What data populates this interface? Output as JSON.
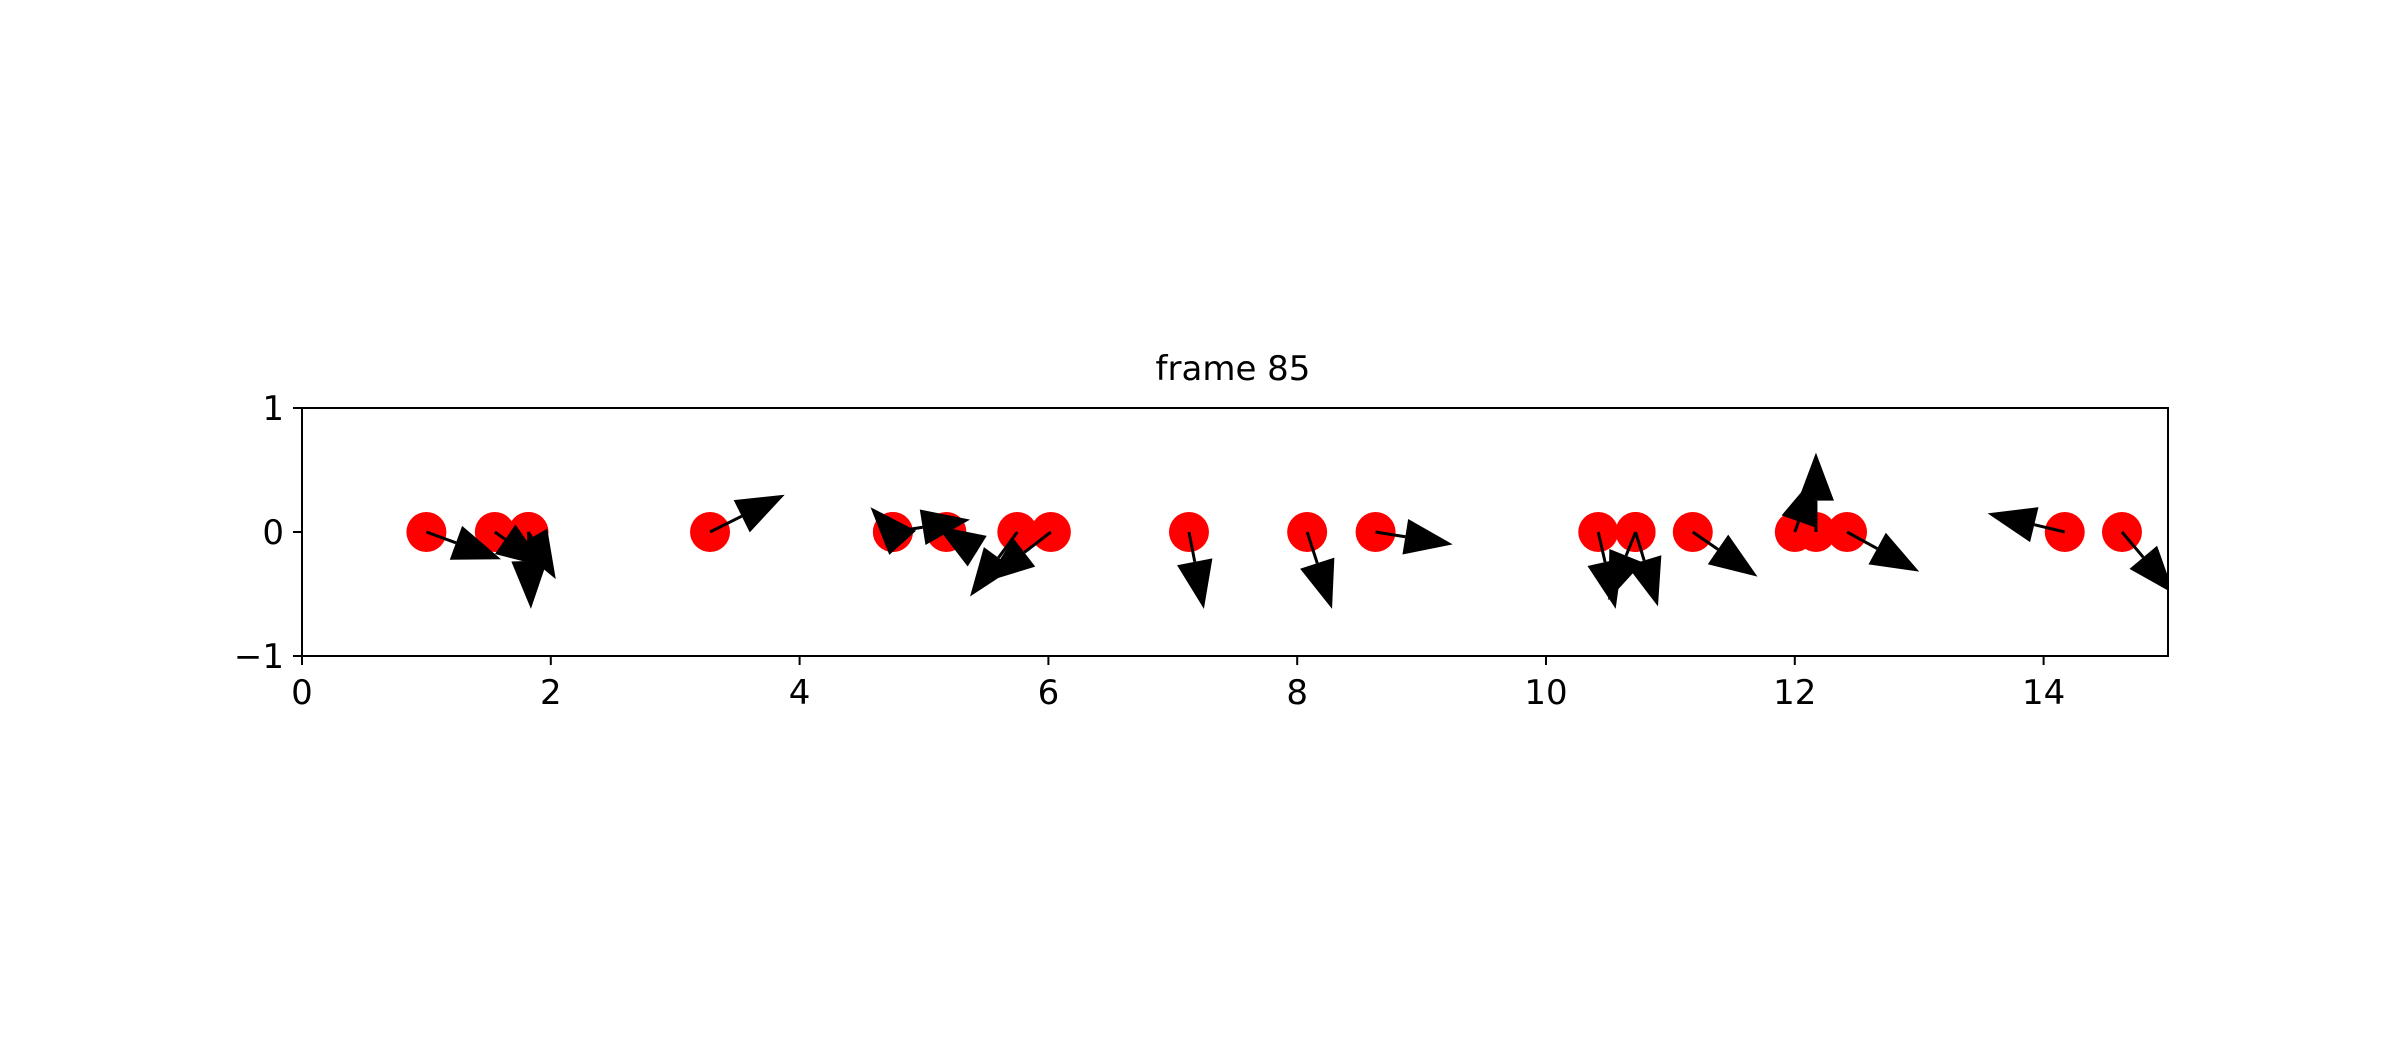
{
  "chart_data": {
    "type": "scatter",
    "title": "frame 85",
    "xlabel": "",
    "ylabel": "",
    "xlim": [
      0,
      15
    ],
    "ylim": [
      -1,
      1
    ],
    "x_ticks": [
      0,
      2,
      4,
      6,
      8,
      10,
      12,
      14
    ],
    "y_ticks": [
      -1,
      0,
      1
    ],
    "x_tick_labels": [
      "0",
      "2",
      "4",
      "6",
      "8",
      "10",
      "12",
      "14"
    ],
    "y_tick_labels": [
      "−1",
      "0",
      "1"
    ],
    "grid": false,
    "legend": "none",
    "point_color": "#ff0000",
    "arrow_color": "#000000",
    "points": [
      {
        "x": 1.0,
        "y": 0,
        "dx": 0.6,
        "dy": -0.22
      },
      {
        "x": 1.55,
        "y": 0,
        "dx": 0.4,
        "dy": -0.28
      },
      {
        "x": 1.82,
        "y": 0,
        "dx": 0.02,
        "dy": -0.62
      },
      {
        "x": 1.82,
        "y": 0,
        "dx": 0.22,
        "dy": -0.38
      },
      {
        "x": 3.28,
        "y": 0,
        "dx": 0.6,
        "dy": 0.3
      },
      {
        "x": 4.75,
        "y": 0,
        "dx": -0.18,
        "dy": 0.2
      },
      {
        "x": 4.75,
        "y": 0,
        "dx": 0.62,
        "dy": 0.1
      },
      {
        "x": 5.18,
        "y": 0,
        "dx": -0.08,
        "dy": 0.05
      },
      {
        "x": 5.75,
        "y": 0,
        "dx": -0.38,
        "dy": -0.52
      },
      {
        "x": 6.02,
        "y": 0,
        "dx": -0.52,
        "dy": -0.4
      },
      {
        "x": 7.13,
        "y": 0,
        "dx": 0.12,
        "dy": -0.62
      },
      {
        "x": 8.08,
        "y": 0,
        "dx": 0.2,
        "dy": -0.62
      },
      {
        "x": 8.63,
        "y": 0,
        "dx": 0.62,
        "dy": -0.1
      },
      {
        "x": 10.42,
        "y": 0,
        "dx": 0.14,
        "dy": -0.62
      },
      {
        "x": 10.72,
        "y": 0,
        "dx": -0.22,
        "dy": -0.55
      },
      {
        "x": 10.72,
        "y": 0,
        "dx": 0.18,
        "dy": -0.6
      },
      {
        "x": 11.18,
        "y": 0,
        "dx": 0.52,
        "dy": -0.36
      },
      {
        "x": 12.0,
        "y": 0,
        "dx": 0.16,
        "dy": 0.45
      },
      {
        "x": 12.17,
        "y": 0,
        "dx": 0.0,
        "dy": 0.64
      },
      {
        "x": 12.42,
        "y": 0,
        "dx": 0.58,
        "dy": -0.32
      },
      {
        "x": 14.17,
        "y": 0,
        "dx": -0.62,
        "dy": 0.15
      },
      {
        "x": 14.63,
        "y": 0,
        "dx": 0.42,
        "dy": -0.5
      }
    ]
  }
}
